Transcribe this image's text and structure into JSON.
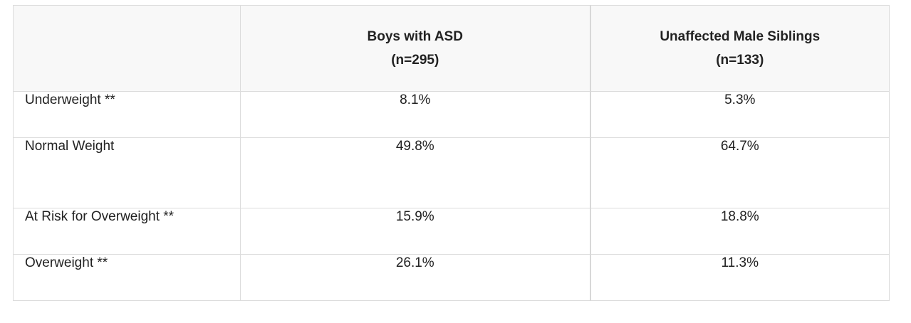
{
  "table": {
    "headers": [
      {
        "line1": "",
        "line2": ""
      },
      {
        "line1": "Boys with ASD",
        "line2": "(n=295)"
      },
      {
        "line1": "Unaffected Male Siblings",
        "line2": "(n=133)"
      }
    ],
    "rows": [
      {
        "label": "Underweight **",
        "asd": "8.1%",
        "siblings": "5.3%"
      },
      {
        "label": "Normal Weight",
        "asd": "49.8%",
        "siblings": "64.7%"
      },
      {
        "label": "At Risk for Overweight **",
        "asd": "15.9%",
        "siblings": "18.8%"
      },
      {
        "label": "Overweight **",
        "asd": "26.1%",
        "siblings": "11.3%"
      }
    ]
  }
}
